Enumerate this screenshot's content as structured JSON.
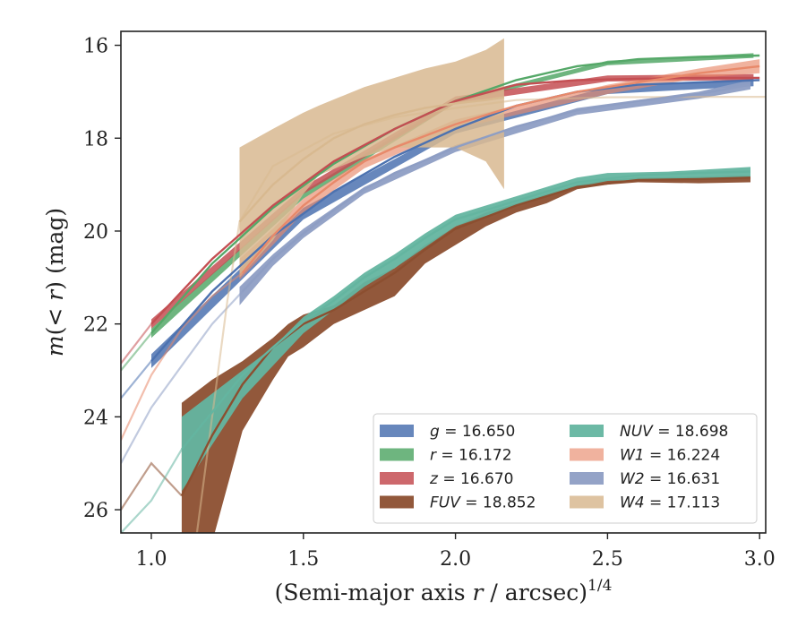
{
  "chart_data": {
    "type": "line",
    "xlabel_prefix": "(Semi-major axis ",
    "xlabel_var": "r",
    "xlabel_mid": " / arcsec)",
    "xlabel_exp": "1/4",
    "ylabel_prefix": "m(< ",
    "ylabel_var": "r",
    "ylabel_suffix": ") (mag)",
    "xlim": [
      0.9,
      3.02
    ],
    "ylim": [
      26.5,
      15.7
    ],
    "y_inverted": true,
    "x_ticks": [
      1.0,
      1.5,
      2.0,
      2.5,
      3.0
    ],
    "x_tick_labels": [
      "1.0",
      "1.5",
      "2.0",
      "2.5",
      "3.0"
    ],
    "y_ticks": [
      16,
      18,
      20,
      22,
      24,
      26
    ],
    "y_tick_labels": [
      "16",
      "18",
      "20",
      "22",
      "24",
      "26"
    ],
    "grid": false,
    "legend_position": "lower-right",
    "series": [
      {
        "name": "g = 16.650",
        "var": "g",
        "val": "16.650",
        "color": "#4c72b0",
        "x": [
          1.0,
          1.2,
          1.4,
          1.6,
          1.8,
          2.0,
          2.2,
          2.4,
          2.6,
          2.8,
          3.0
        ],
        "y": [
          22.8,
          21.3,
          20.1,
          19.15,
          18.4,
          17.8,
          17.3,
          17.0,
          16.85,
          16.8,
          16.75
        ],
        "fade_x": [
          0.9,
          1.0
        ],
        "fade_y": [
          23.6,
          22.8
        ],
        "band": [
          [
            1.0,
            22.65,
            22.95
          ],
          [
            1.5,
            19.5,
            19.75
          ],
          [
            2.0,
            17.75,
            17.9
          ],
          [
            2.5,
            16.9,
            17.05
          ],
          [
            2.98,
            16.72,
            16.88
          ]
        ],
        "band_opacity": 0.85
      },
      {
        "name": "r = 16.172",
        "var": "r",
        "val": "16.172",
        "color": "#55a868",
        "x": [
          1.0,
          1.2,
          1.4,
          1.6,
          1.8,
          2.0,
          2.2,
          2.4,
          2.6,
          2.8,
          3.0
        ],
        "y": [
          22.2,
          20.7,
          19.5,
          18.55,
          17.8,
          17.2,
          16.75,
          16.45,
          16.3,
          16.25,
          16.22
        ],
        "fade_x": [
          0.9,
          1.0
        ],
        "fade_y": [
          23.0,
          22.2
        ],
        "band": [
          [
            1.0,
            22.1,
            22.3
          ],
          [
            1.5,
            19.15,
            19.3
          ],
          [
            2.0,
            17.15,
            17.25
          ],
          [
            2.5,
            16.33,
            16.43
          ],
          [
            2.98,
            16.17,
            16.27
          ]
        ],
        "band_opacity": 0.85
      },
      {
        "name": "z = 16.670",
        "var": "z",
        "val": "16.670",
        "color": "#c44e52",
        "x": [
          1.0,
          1.2,
          1.4,
          1.6,
          1.8,
          2.0,
          2.2,
          2.4,
          2.6,
          2.8,
          3.0
        ],
        "y": [
          22.0,
          20.6,
          19.45,
          18.5,
          17.8,
          17.2,
          16.85,
          16.75,
          16.72,
          16.7,
          16.7
        ],
        "fade_x": [
          0.9,
          1.0
        ],
        "fade_y": [
          22.85,
          22.0
        ],
        "band": [
          [
            1.0,
            21.9,
            22.1
          ],
          [
            1.5,
            19.05,
            19.2
          ],
          [
            2.0,
            17.1,
            17.25
          ],
          [
            2.5,
            16.65,
            16.78
          ],
          [
            2.98,
            16.62,
            16.75
          ]
        ],
        "band_opacity": 0.85
      },
      {
        "name": "FUV = 18.852",
        "var": "FUV",
        "val": "18.852",
        "color": "#8c4f30",
        "x": [
          1.1,
          1.2,
          1.3,
          1.4,
          1.5,
          1.6,
          1.7,
          1.8,
          1.9,
          2.0,
          2.2,
          2.4,
          2.6,
          2.8,
          2.97
        ],
        "y": [
          25.7,
          24.4,
          23.3,
          22.5,
          22.0,
          21.7,
          21.3,
          20.9,
          20.4,
          19.95,
          19.45,
          19.05,
          18.9,
          18.88,
          18.85
        ],
        "fade_x": [
          0.9,
          1.0,
          1.1
        ],
        "fade_y": [
          26.0,
          25.0,
          25.7
        ],
        "band": [
          [
            1.1,
            23.7,
            26.7
          ],
          [
            1.2,
            23.2,
            26.7
          ],
          [
            1.3,
            22.8,
            24.3
          ],
          [
            1.4,
            22.3,
            23.2
          ],
          [
            1.45,
            22.0,
            22.7
          ],
          [
            1.5,
            21.8,
            22.5
          ],
          [
            1.6,
            21.6,
            22.0
          ],
          [
            1.7,
            21.1,
            21.7
          ],
          [
            1.8,
            20.8,
            21.4
          ],
          [
            1.9,
            20.3,
            20.7
          ],
          [
            2.0,
            19.9,
            20.3
          ],
          [
            2.1,
            19.6,
            19.9
          ],
          [
            2.2,
            19.4,
            19.6
          ],
          [
            2.3,
            19.2,
            19.4
          ],
          [
            2.4,
            19.0,
            19.1
          ],
          [
            2.5,
            18.9,
            19.0
          ],
          [
            2.6,
            18.85,
            18.95
          ],
          [
            2.8,
            18.83,
            18.97
          ],
          [
            2.97,
            18.8,
            18.95
          ]
        ],
        "band_opacity": 0.95
      },
      {
        "name": "NUV = 18.698",
        "var": "NUV",
        "val": "18.698",
        "color": "#64b5a0",
        "x": [
          1.1,
          1.2,
          1.3,
          1.4,
          1.5,
          1.6,
          1.7,
          1.8,
          1.9,
          2.0,
          2.2,
          2.4,
          2.6,
          2.8,
          2.97
        ],
        "y": [
          24.7,
          23.9,
          23.1,
          22.5,
          21.95,
          21.5,
          21.0,
          20.6,
          20.15,
          19.75,
          19.35,
          18.95,
          18.8,
          18.75,
          18.72
        ],
        "fade_x": [
          0.9,
          1.0,
          1.1
        ],
        "fade_y": [
          26.5,
          25.8,
          24.7
        ],
        "band": [
          [
            1.1,
            24.0,
            25.6
          ],
          [
            1.2,
            23.5,
            24.6
          ],
          [
            1.3,
            23.0,
            23.6
          ],
          [
            1.4,
            22.5,
            22.9
          ],
          [
            1.5,
            21.85,
            22.2
          ],
          [
            1.6,
            21.4,
            21.7
          ],
          [
            1.7,
            20.9,
            21.2
          ],
          [
            1.8,
            20.5,
            20.8
          ],
          [
            1.9,
            20.05,
            20.35
          ],
          [
            2.0,
            19.65,
            19.9
          ],
          [
            2.2,
            19.25,
            19.45
          ],
          [
            2.4,
            18.85,
            19.05
          ],
          [
            2.5,
            18.75,
            18.92
          ],
          [
            2.7,
            18.72,
            18.88
          ],
          [
            2.97,
            18.62,
            18.85
          ]
        ],
        "band_opacity": 0.95
      },
      {
        "name": "W1 = 16.224",
        "var": "W1",
        "val": "16.224",
        "color": "#e8896a",
        "x": [
          1.3,
          1.4,
          1.5,
          1.6,
          1.7,
          1.8,
          2.0,
          2.2,
          2.4,
          2.6,
          2.8,
          3.0
        ],
        "y": [
          20.9,
          20.1,
          19.45,
          18.95,
          18.5,
          18.2,
          17.7,
          17.3,
          17.0,
          16.8,
          16.6,
          16.45
        ],
        "fade_x": [
          0.9,
          1.0,
          1.1,
          1.2,
          1.3
        ],
        "fade_y": [
          24.5,
          23.1,
          22.1,
          21.4,
          20.9
        ],
        "band": [
          [
            1.29,
            20.6,
            21.05
          ],
          [
            1.4,
            19.95,
            20.3
          ],
          [
            1.5,
            19.3,
            19.6
          ],
          [
            1.7,
            18.45,
            18.65
          ],
          [
            2.0,
            17.6,
            17.8
          ],
          [
            2.5,
            16.85,
            17.05
          ],
          [
            2.8,
            16.5,
            16.7
          ],
          [
            3.0,
            16.3,
            16.6
          ]
        ],
        "band_opacity": 0.65
      },
      {
        "name": "W2 = 16.631",
        "var": "W2",
        "val": "16.631",
        "color": "#8e9ec4",
        "x": [
          1.3,
          1.4,
          1.5,
          1.6,
          1.7,
          1.8,
          2.0,
          2.2,
          2.4,
          2.6,
          2.8,
          2.97
        ],
        "y": [
          21.3,
          20.6,
          20.05,
          19.55,
          19.1,
          18.75,
          18.2,
          17.75,
          17.4,
          17.2,
          17.05,
          16.85
        ],
        "fade_x": [
          0.9,
          1.0,
          1.1,
          1.2,
          1.3
        ],
        "fade_y": [
          25.0,
          23.8,
          22.9,
          22.0,
          21.3
        ],
        "band": [
          [
            1.29,
            21.2,
            21.6
          ],
          [
            1.4,
            20.5,
            20.75
          ],
          [
            1.5,
            19.95,
            20.15
          ],
          [
            1.7,
            19.05,
            19.2
          ],
          [
            2.0,
            18.15,
            18.3
          ],
          [
            2.4,
            17.35,
            17.5
          ],
          [
            2.8,
            17.0,
            17.15
          ],
          [
            2.97,
            16.75,
            16.95
          ]
        ],
        "band_opacity": 0.95
      },
      {
        "name": "W4 = 17.113",
        "var": "W4",
        "val": "17.113",
        "color": "#d8b990",
        "x": [
          1.29,
          1.4,
          1.5,
          1.6,
          1.7,
          1.8,
          1.9,
          2.0,
          2.1,
          2.16
        ],
        "y": [
          19.8,
          19.0,
          18.45,
          18.0,
          17.7,
          17.5,
          17.35,
          17.25,
          17.18,
          17.12
        ],
        "fade_x": [
          1.15,
          1.2,
          1.25,
          1.29,
          1.4,
          1.6,
          1.8,
          2.0,
          2.2,
          2.5,
          2.8,
          3.02
        ],
        "fade_y": [
          26.5,
          24.0,
          21.5,
          19.8,
          18.6,
          17.9,
          17.55,
          17.35,
          17.18,
          17.12,
          17.11,
          17.11
        ],
        "band": [
          [
            1.29,
            18.2,
            21.0
          ],
          [
            1.4,
            17.8,
            20.2
          ],
          [
            1.5,
            17.45,
            19.2
          ],
          [
            1.55,
            17.3,
            18.8
          ],
          [
            1.7,
            16.9,
            18.4
          ],
          [
            1.8,
            16.7,
            18.2
          ],
          [
            1.9,
            16.5,
            18.2
          ],
          [
            2.0,
            16.35,
            18.2
          ],
          [
            2.1,
            16.1,
            18.5
          ],
          [
            2.16,
            15.85,
            19.1
          ]
        ],
        "band_opacity": 0.85
      }
    ]
  }
}
